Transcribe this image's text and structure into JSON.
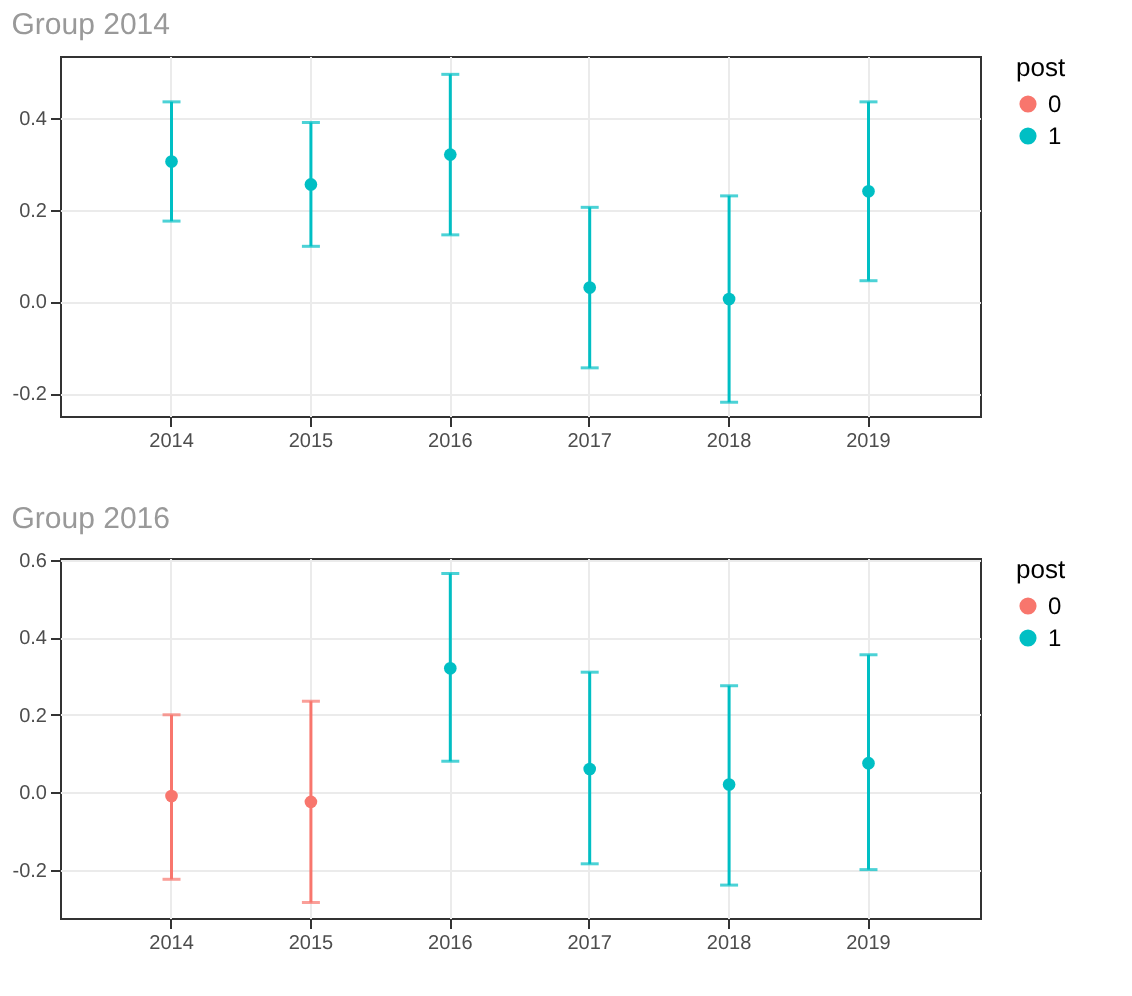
{
  "chart_data": [
    {
      "type": "scatter",
      "title": "Group 2014",
      "legend_title": "post",
      "legend": "right",
      "grid": true,
      "marker": "circle",
      "categories": [
        "2014",
        "2015",
        "2016",
        "2017",
        "2018",
        "2019"
      ],
      "ylim": [
        -0.25,
        0.535
      ],
      "yticks": [
        -0.2,
        {
          "value": 0,
          "label": "0.0"
        },
        0.2,
        0.4
      ],
      "series": [
        {
          "name": "0",
          "color": "#f8766d",
          "values": [
            null,
            null,
            null,
            null,
            null,
            null
          ],
          "errors": [
            null,
            null,
            null,
            null,
            null,
            null
          ]
        },
        {
          "name": "1",
          "color": "#00bfc4",
          "values": [
            0.305,
            0.255,
            0.32,
            0.03,
            0.005,
            0.24
          ],
          "errors": [
            [
              0.175,
              0.435
            ],
            [
              0.12,
              0.39
            ],
            [
              0.145,
              0.495
            ],
            [
              -0.145,
              0.205
            ],
            [
              -0.22,
              0.23
            ],
            [
              0.045,
              0.435
            ]
          ]
        }
      ]
    },
    {
      "type": "scatter",
      "title": "Group 2016",
      "legend_title": "post",
      "legend": "right",
      "grid": true,
      "marker": "circle",
      "categories": [
        "2014",
        "2015",
        "2016",
        "2017",
        "2018",
        "2019"
      ],
      "ylim": [
        -0.325,
        0.605
      ],
      "yticks": [
        -0.2,
        {
          "value": 0,
          "label": "0.0"
        },
        0.2,
        0.4,
        0.6
      ],
      "series": [
        {
          "name": "0",
          "color": "#f8766d",
          "values": [
            -0.01,
            -0.025,
            null,
            null,
            null,
            null
          ],
          "errors": [
            [
              -0.225,
              0.2
            ],
            [
              -0.285,
              0.235
            ],
            null,
            null,
            null,
            null
          ]
        },
        {
          "name": "1",
          "color": "#00bfc4",
          "values": [
            null,
            null,
            0.32,
            0.06,
            0.02,
            0.075
          ],
          "errors": [
            null,
            null,
            [
              0.08,
              0.565
            ],
            [
              -0.185,
              0.31
            ],
            [
              -0.24,
              0.275
            ],
            [
              -0.2,
              0.355
            ]
          ]
        }
      ]
    }
  ]
}
